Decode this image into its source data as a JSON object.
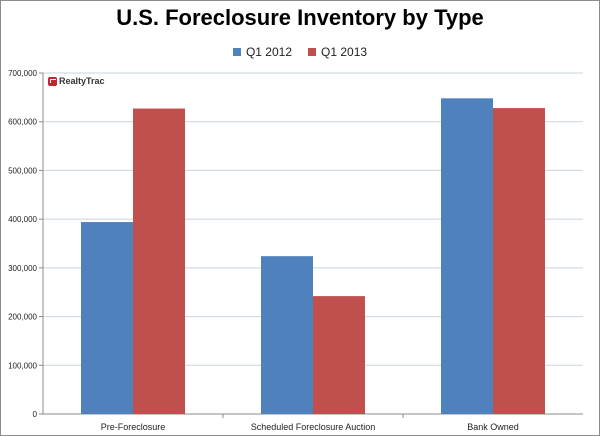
{
  "colors": {
    "q1_2012": "#4f81bd",
    "q1_2013": "#c0504d",
    "grid": "#c9d3e0",
    "axis": "#8c8c8c"
  },
  "logo": {
    "text": "RealtyTrac"
  },
  "chart_data": {
    "type": "bar",
    "title": "U.S. Foreclosure Inventory by Type",
    "xlabel": "",
    "ylabel": "",
    "categories": [
      "Pre-Foreclosure",
      "Scheduled Foreclosure Auction",
      "Bank Owned"
    ],
    "series": [
      {
        "name": "Q1 2012",
        "values": [
          394000,
          324000,
          648000
        ]
      },
      {
        "name": "Q1 2013",
        "values": [
          627000,
          242000,
          628000
        ]
      }
    ],
    "ylim": [
      0,
      700000
    ],
    "yticks": [
      "0",
      "100,000",
      "200,000",
      "300,000",
      "400,000",
      "500,000",
      "600,000",
      "700,000"
    ],
    "grid": true,
    "legend_position": "top"
  }
}
